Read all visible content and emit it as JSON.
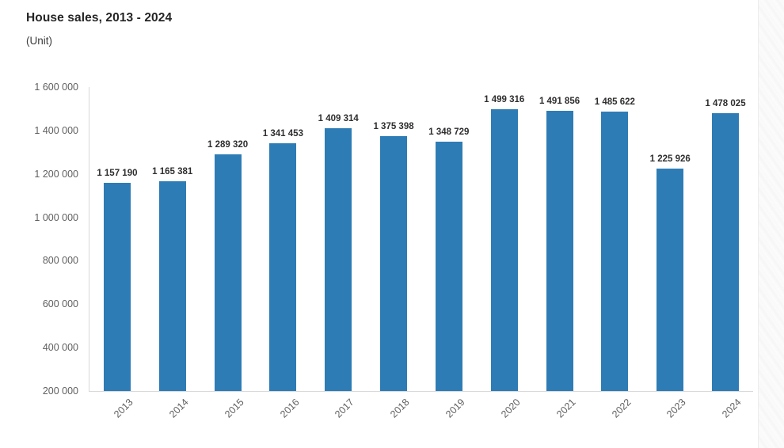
{
  "header": {
    "title": "House sales, 2013 - 2024",
    "subtitle": "(Unit)"
  },
  "chart_data": {
    "type": "bar",
    "title": "House sales, 2013 - 2024",
    "xlabel": "",
    "ylabel": "(Unit)",
    "categories": [
      "2013",
      "2014",
      "2015",
      "2016",
      "2017",
      "2018",
      "2019",
      "2020",
      "2021",
      "2022",
      "2023",
      "2024"
    ],
    "values": [
      1157190,
      1165381,
      1289320,
      1341453,
      1409314,
      1375398,
      1348729,
      1499316,
      1491856,
      1485622,
      1225926,
      1478025
    ],
    "value_labels": [
      "1 157 190",
      "1 165 381",
      "1 289 320",
      "1 341 453",
      "1 409 314",
      "1 375 398",
      "1 348 729",
      "1 499 316",
      "1 491 856",
      "1 485 622",
      "1 225 926",
      "1 478 025"
    ],
    "ylim": [
      200000,
      1600000
    ],
    "ytick_step": 200000,
    "ytick_labels": [
      "200 000",
      "400 000",
      "600 000",
      "800 000",
      "1 000 000",
      "1 200 000",
      "1 400 000",
      "1 600 000"
    ],
    "grid": false,
    "legend": "none",
    "bar_color": "#2e7cb5",
    "axis_color": "#d9d9d9",
    "tick_label_color": "#5f5f5f",
    "value_label_color": "#2e2e2e"
  }
}
